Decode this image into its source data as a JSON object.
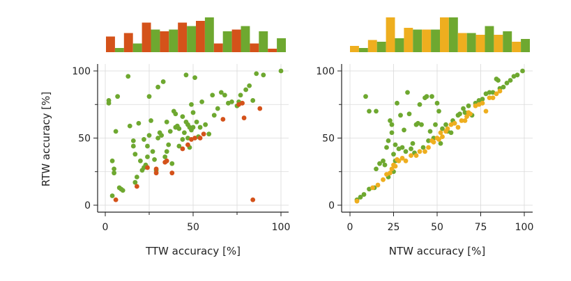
{
  "colors": {
    "green": "#6ea830",
    "red": "#d4521a",
    "orange": "#eeae1f",
    "grid": "#d9d9d9",
    "axis": "#222222"
  },
  "chart_data": [
    {
      "type": "scatter",
      "xlabel": "TTW accuracy [%]",
      "ylabel": "RTW accuracy [%]",
      "xlim": [
        -4,
        105
      ],
      "ylim": [
        -5,
        105
      ],
      "xticks": [
        0,
        50,
        100
      ],
      "yticks": [
        0,
        50,
        100
      ],
      "grid": true,
      "series": [
        {
          "color_key": "green",
          "points": [
            [
              2,
              78
            ],
            [
              2,
              76
            ],
            [
              4,
              33
            ],
            [
              4,
              7
            ],
            [
              5,
              27
            ],
            [
              5,
              24
            ],
            [
              6,
              55
            ],
            [
              7,
              81
            ],
            [
              8,
              13
            ],
            [
              9,
              12
            ],
            [
              10,
              11
            ],
            [
              13,
              96
            ],
            [
              14,
              59
            ],
            [
              16,
              48
            ],
            [
              16,
              44
            ],
            [
              17,
              38
            ],
            [
              17,
              17
            ],
            [
              18,
              21
            ],
            [
              19,
              61
            ],
            [
              20,
              33
            ],
            [
              21,
              26
            ],
            [
              22,
              28
            ],
            [
              22,
              49
            ],
            [
              23,
              30
            ],
            [
              24,
              44
            ],
            [
              24,
              36
            ],
            [
              25,
              52
            ],
            [
              25,
              81
            ],
            [
              26,
              63
            ],
            [
              27,
              40
            ],
            [
              28,
              34
            ],
            [
              29,
              26
            ],
            [
              30,
              88
            ],
            [
              30,
              50
            ],
            [
              31,
              54
            ],
            [
              32,
              52
            ],
            [
              33,
              92
            ],
            [
              34,
              36
            ],
            [
              35,
              40
            ],
            [
              35,
              62
            ],
            [
              36,
              45
            ],
            [
              37,
              55
            ],
            [
              38,
              31
            ],
            [
              39,
              70
            ],
            [
              40,
              68
            ],
            [
              40,
              58
            ],
            [
              41,
              59
            ],
            [
              42,
              44
            ],
            [
              42,
              57
            ],
            [
              44,
              49
            ],
            [
              44,
              66
            ],
            [
              45,
              54
            ],
            [
              46,
              97
            ],
            [
              46,
              62
            ],
            [
              47,
              50
            ],
            [
              47,
              60
            ],
            [
              48,
              43
            ],
            [
              48,
              58
            ],
            [
              49,
              56
            ],
            [
              49,
              75
            ],
            [
              50,
              69
            ],
            [
              50,
              58
            ],
            [
              51,
              95
            ],
            [
              52,
              62
            ],
            [
              53,
              51
            ],
            [
              54,
              58
            ],
            [
              55,
              77
            ],
            [
              57,
              60
            ],
            [
              59,
              53
            ],
            [
              61,
              82
            ],
            [
              62,
              67
            ],
            [
              64,
              72
            ],
            [
              66,
              84
            ],
            [
              68,
              82
            ],
            [
              70,
              76
            ],
            [
              72,
              77
            ],
            [
              75,
              74
            ],
            [
              76,
              77
            ],
            [
              77,
              82
            ],
            [
              80,
              86
            ],
            [
              82,
              89
            ],
            [
              84,
              78
            ],
            [
              86,
              98
            ],
            [
              90,
              97
            ],
            [
              100,
              100
            ]
          ]
        },
        {
          "color_key": "red",
          "points": [
            [
              6,
              4
            ],
            [
              18,
              14
            ],
            [
              24,
              28
            ],
            [
              29,
              24
            ],
            [
              29,
              27
            ],
            [
              34,
              32
            ],
            [
              35,
              33
            ],
            [
              38,
              24
            ],
            [
              44,
              42
            ],
            [
              47,
              45
            ],
            [
              49,
              49
            ],
            [
              51,
              50
            ],
            [
              54,
              50
            ],
            [
              56,
              53
            ],
            [
              67,
              64
            ],
            [
              76,
              75
            ],
            [
              78,
              76
            ],
            [
              79,
              65
            ],
            [
              84,
              4
            ],
            [
              88,
              72
            ]
          ]
        }
      ],
      "histogram": {
        "series_order": [
          "red",
          "green"
        ],
        "red": [
          0.45,
          0.55,
          0.85,
          0.6,
          0.85,
          0.9,
          0.25,
          0.65,
          0.25,
          0.1
        ],
        "green": [
          0.12,
          0.25,
          0.65,
          0.65,
          0.75,
          1.0,
          0.6,
          0.75,
          0.6,
          0.4
        ]
      }
    },
    {
      "type": "scatter",
      "xlabel": "NTW accuracy [%]",
      "ylabel": "",
      "xlim": [
        -4,
        105
      ],
      "ylim": [
        -5,
        105
      ],
      "xticks": [
        0,
        25,
        50,
        75,
        100
      ],
      "yticks": [
        0,
        50,
        100
      ],
      "grid": true,
      "series": [
        {
          "color_key": "green",
          "points": [
            [
              4,
              4
            ],
            [
              6,
              6
            ],
            [
              8,
              8
            ],
            [
              9,
              81
            ],
            [
              11,
              12
            ],
            [
              11,
              70
            ],
            [
              14,
              13
            ],
            [
              15,
              70
            ],
            [
              15,
              27
            ],
            [
              17,
              31
            ],
            [
              19,
              33
            ],
            [
              20,
              30
            ],
            [
              21,
              43
            ],
            [
              22,
              48
            ],
            [
              22,
              21
            ],
            [
              23,
              63
            ],
            [
              24,
              60
            ],
            [
              24,
              54
            ],
            [
              25,
              25
            ],
            [
              25,
              38
            ],
            [
              26,
              45
            ],
            [
              26,
              33
            ],
            [
              27,
              76
            ],
            [
              28,
              42
            ],
            [
              29,
              67
            ],
            [
              30,
              43
            ],
            [
              31,
              56
            ],
            [
              32,
              40
            ],
            [
              33,
              84
            ],
            [
              34,
              68
            ],
            [
              35,
              42
            ],
            [
              36,
              46
            ],
            [
              37,
              39
            ],
            [
              38,
              60
            ],
            [
              39,
              61
            ],
            [
              40,
              75
            ],
            [
              41,
              60
            ],
            [
              42,
              43
            ],
            [
              43,
              80
            ],
            [
              44,
              81
            ],
            [
              45,
              48
            ],
            [
              46,
              55
            ],
            [
              47,
              81
            ],
            [
              48,
              50
            ],
            [
              49,
              60
            ],
            [
              50,
              76
            ],
            [
              51,
              70
            ],
            [
              52,
              46
            ],
            [
              53,
              57
            ],
            [
              55,
              60
            ],
            [
              56,
              55
            ],
            [
              58,
              54
            ],
            [
              59,
              63
            ],
            [
              60,
              61
            ],
            [
              62,
              67
            ],
            [
              63,
              68
            ],
            [
              65,
              72
            ],
            [
              66,
              69
            ],
            [
              68,
              74
            ],
            [
              70,
              67
            ],
            [
              72,
              76
            ],
            [
              74,
              78
            ],
            [
              76,
              79
            ],
            [
              78,
              83
            ],
            [
              80,
              84
            ],
            [
              82,
              84
            ],
            [
              84,
              94
            ],
            [
              85,
              93
            ],
            [
              86,
              87
            ],
            [
              88,
              88
            ],
            [
              90,
              91
            ],
            [
              92,
              93
            ],
            [
              94,
              96
            ],
            [
              96,
              97
            ],
            [
              99,
              100
            ]
          ]
        },
        {
          "color_key": "orange",
          "points": [
            [
              4,
              3
            ],
            [
              13,
              13
            ],
            [
              16,
              15
            ],
            [
              19,
              19
            ],
            [
              21,
              23
            ],
            [
              23,
              24
            ],
            [
              24,
              27
            ],
            [
              25,
              30
            ],
            [
              26,
              29
            ],
            [
              27,
              34
            ],
            [
              28,
              33
            ],
            [
              30,
              35
            ],
            [
              32,
              33
            ],
            [
              35,
              37
            ],
            [
              38,
              37
            ],
            [
              40,
              40
            ],
            [
              43,
              40
            ],
            [
              45,
              43
            ],
            [
              47,
              48
            ],
            [
              48,
              47
            ],
            [
              50,
              50
            ],
            [
              51,
              49
            ],
            [
              52,
              54
            ],
            [
              53,
              51
            ],
            [
              55,
              55
            ],
            [
              56,
              57
            ],
            [
              58,
              60
            ],
            [
              60,
              61
            ],
            [
              62,
              58
            ],
            [
              64,
              63
            ],
            [
              66,
              63
            ],
            [
              67,
              66
            ],
            [
              68,
              69
            ],
            [
              69,
              68
            ],
            [
              72,
              74
            ],
            [
              74,
              75
            ],
            [
              76,
              76
            ],
            [
              78,
              70
            ],
            [
              80,
              80
            ],
            [
              82,
              80
            ],
            [
              84,
              83
            ],
            [
              86,
              85
            ]
          ]
        }
      ],
      "histogram": {
        "series_order": [
          "orange",
          "green"
        ],
        "orange": [
          0.18,
          0.35,
          1.0,
          0.7,
          0.65,
          1.0,
          0.55,
          0.5,
          0.5,
          0.3
        ],
        "green": [
          0.12,
          0.3,
          0.4,
          0.65,
          0.65,
          1.0,
          0.55,
          0.75,
          0.6,
          0.38
        ]
      }
    }
  ]
}
